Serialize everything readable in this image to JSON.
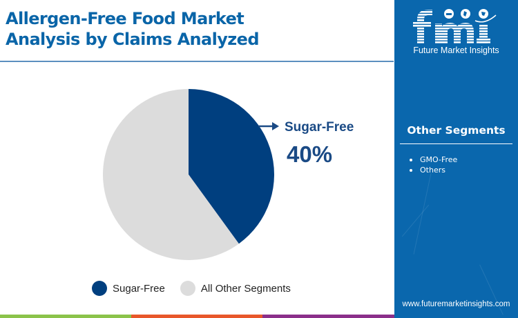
{
  "header": {
    "title_line1": "Allergen-Free Food Market",
    "title_line2": "Analysis by Claims Analyzed"
  },
  "chart_data": {
    "type": "pie",
    "title": "Allergen-Free Food Market Analysis by Claims Analyzed",
    "categories": [
      "Sugar-Free",
      "All Other Segments"
    ],
    "values": [
      40,
      60
    ],
    "unit": "%",
    "colors": [
      "#003f7f",
      "#dcdcdc"
    ],
    "start_angle_deg": 0,
    "direction": "clockwise",
    "annotations": [
      {
        "label": "Sugar-Free",
        "value": "40%"
      }
    ],
    "legend_position": "bottom"
  },
  "callout": {
    "label": "Sugar-Free",
    "value": "40%"
  },
  "legend": {
    "items": [
      {
        "label": "Sugar-Free",
        "color": "#003f7f"
      },
      {
        "label": "All Other Segments",
        "color": "#dcdcdc"
      }
    ]
  },
  "sidebar": {
    "logo_text": "fmi",
    "logo_subtitle": "Future Market Insights",
    "segments_title": "Other Segments",
    "segments": [
      "GMO-Free",
      "Others"
    ],
    "website": "www.futuremarketinsights.com",
    "background": "#0a67ad"
  },
  "footer_stripes": [
    "#8bc34a",
    "#e8572a",
    "#8b2f8a"
  ]
}
